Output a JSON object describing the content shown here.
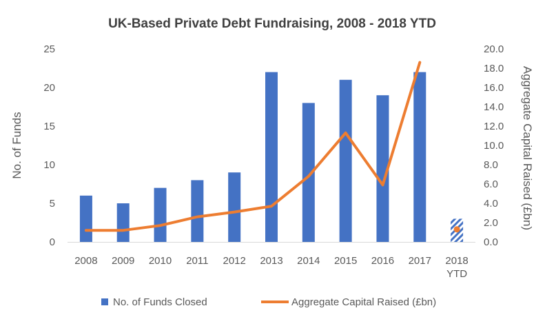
{
  "chart_data": {
    "type": "bar",
    "title": "UK-Based Private Debt Fundraising, 2008 - 2018 YTD",
    "categories": [
      [
        "2008"
      ],
      [
        "2009"
      ],
      [
        "2010"
      ],
      [
        "2011"
      ],
      [
        "2012"
      ],
      [
        "2013"
      ],
      [
        "2014"
      ],
      [
        "2015"
      ],
      [
        "2016"
      ],
      [
        "2017"
      ],
      [
        "2018",
        "YTD"
      ]
    ],
    "series": [
      {
        "name": "No. of Funds Closed",
        "type": "bar",
        "axis": "left",
        "values": [
          6,
          5,
          7,
          8,
          9,
          22,
          18,
          21,
          19,
          22,
          3
        ],
        "color": "#4472C4",
        "patterned_last": true
      },
      {
        "name": "Aggregate Capital Raised (£bn)",
        "type": "line",
        "axis": "right",
        "values": [
          1.2,
          1.2,
          1.7,
          2.6,
          3.1,
          3.7,
          6.8,
          11.3,
          5.9,
          18.6,
          1.3
        ],
        "color": "#ED7D31"
      }
    ],
    "ylabel": "No. of Funds",
    "y2label": "Aggregate Capital Raised (£bn)",
    "ylim": [
      0,
      25
    ],
    "y2lim": [
      0,
      20
    ],
    "yticks": [
      "0",
      "5",
      "10",
      "15",
      "20",
      "25"
    ],
    "y2ticks": [
      "0.0",
      "2.0",
      "4.0",
      "6.0",
      "8.0",
      "10.0",
      "12.0",
      "14.0",
      "16.0",
      "18.0",
      "20.0"
    ],
    "legend_position": "bottom",
    "grid": false
  }
}
